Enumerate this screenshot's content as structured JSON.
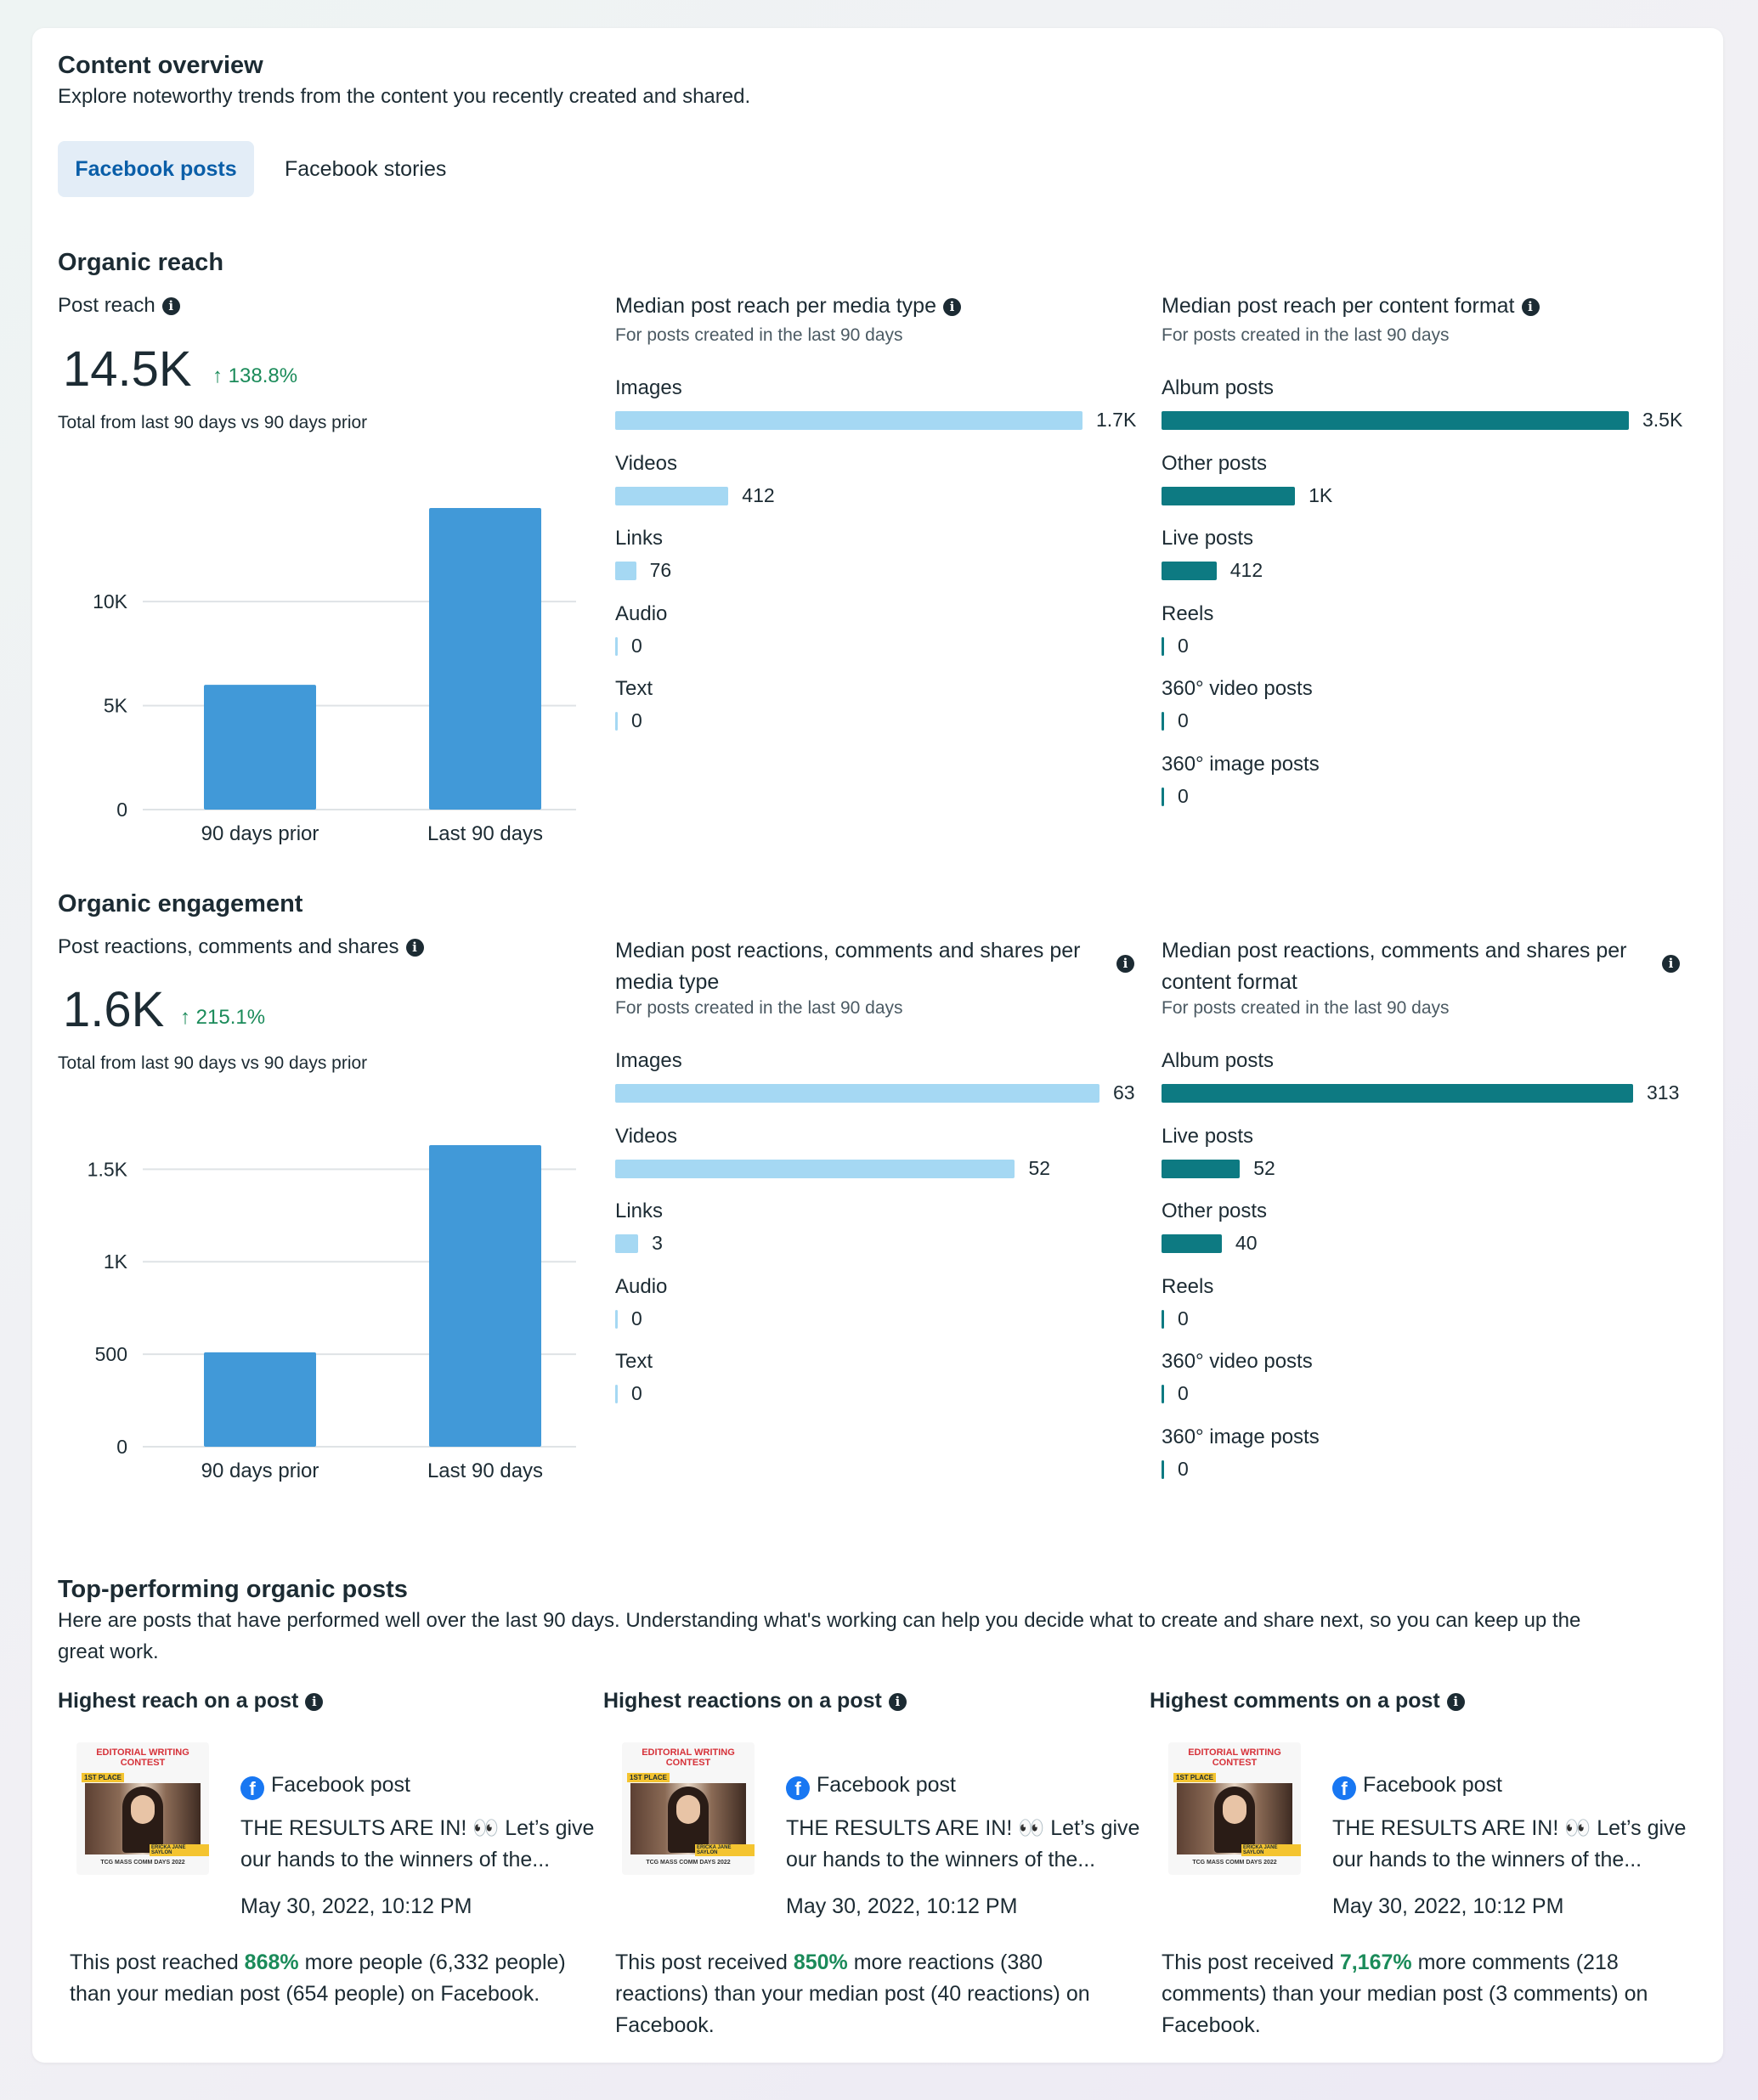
{
  "header": {
    "title": "Content overview",
    "subtitle": "Explore noteworthy trends from the content you recently created and shared."
  },
  "tabs": [
    {
      "label": "Facebook posts",
      "active": true
    },
    {
      "label": "Facebook stories",
      "active": false
    }
  ],
  "reach": {
    "section_title": "Organic reach",
    "metric_label": "Post reach",
    "value": "14.5K",
    "delta": "↑ 138.8%",
    "caption": "Total from last 90 days vs 90 days prior",
    "media_title": "Median post reach per media type",
    "media_sub": "For posts created in the last 90 days",
    "format_title": "Median post reach per content format",
    "format_sub": "For posts created in the last 90 days"
  },
  "engagement": {
    "section_title": "Organic engagement",
    "metric_label": "Post reactions, comments and shares",
    "value": "1.6K",
    "delta": "↑ 215.1%",
    "caption": "Total from last 90 days vs 90 days prior",
    "media_title_1": "Median post reactions, comments and shares per",
    "media_title_2": "media type",
    "media_sub": "For posts created in the last 90 days",
    "format_title_1": "Median post reactions, comments and shares per",
    "format_title_2": "content format",
    "format_sub": "For posts created in the last 90 days"
  },
  "chart_data": [
    {
      "type": "bar",
      "categories": [
        "90 days prior",
        "Last 90 days"
      ],
      "values": [
        6000,
        14500
      ],
      "yticks": [
        "0",
        "5K",
        "10K"
      ],
      "ytick_values": [
        0,
        5000,
        10000
      ],
      "ylim": [
        0,
        14500
      ]
    },
    {
      "type": "bar",
      "orientation": "horizontal",
      "categories": [
        "Images",
        "Videos",
        "Links",
        "Audio",
        "Text"
      ],
      "values": [
        1700,
        412,
        76,
        0,
        0
      ],
      "labels": [
        "1.7K",
        "412",
        "76",
        "0",
        "0"
      ],
      "color": "#a5d8f3"
    },
    {
      "type": "bar",
      "orientation": "horizontal",
      "categories": [
        "Album posts",
        "Other posts",
        "Live posts",
        "Reels",
        "360° video posts",
        "360° image posts"
      ],
      "values": [
        3500,
        1000,
        412,
        0,
        0,
        0
      ],
      "labels": [
        "3.5K",
        "1K",
        "412",
        "0",
        "0",
        "0"
      ],
      "color": "#0d7a82"
    },
    {
      "type": "bar",
      "categories": [
        "90 days prior",
        "Last 90 days"
      ],
      "values": [
        510,
        1630
      ],
      "yticks": [
        "0",
        "500",
        "1K",
        "1.5K"
      ],
      "ytick_values": [
        0,
        500,
        1000,
        1500
      ],
      "ylim": [
        0,
        1630
      ]
    },
    {
      "type": "bar",
      "orientation": "horizontal",
      "categories": [
        "Images",
        "Videos",
        "Links",
        "Audio",
        "Text"
      ],
      "values": [
        63,
        52,
        3,
        0,
        0
      ],
      "labels": [
        "63",
        "52",
        "3",
        "0",
        "0"
      ],
      "color": "#a5d8f3"
    },
    {
      "type": "bar",
      "orientation": "horizontal",
      "categories": [
        "Album posts",
        "Live posts",
        "Other posts",
        "Reels",
        "360° video posts",
        "360° image posts"
      ],
      "values": [
        313,
        52,
        40,
        0,
        0,
        0
      ],
      "labels": [
        "313",
        "52",
        "40",
        "0",
        "0",
        "0"
      ],
      "color": "#0d7a82"
    }
  ],
  "top": {
    "title": "Top-performing organic posts",
    "desc_1": "Here are posts that have performed well over the last 90 days. Understanding what's working can help you decide what to create and share next, so you can keep up the",
    "desc_2": "great work.",
    "cards": [
      {
        "heading": "Highest reach on a post",
        "source": "Facebook post",
        "text_1": "THE RESULTS ARE IN! 👀 Let’s give",
        "text_2": "our hands to the winners of the...",
        "date": "May 30, 2022, 10:12 PM",
        "summary_pre": "This post reached ",
        "summary_pct": "868%",
        "summary_post_1": " more people (6,332 people)",
        "summary_line2": "than your median post (654 people) on Facebook.",
        "summary_line3": ""
      },
      {
        "heading": "Highest reactions on a post",
        "source": "Facebook post",
        "text_1": "THE RESULTS ARE IN! 👀 Let’s give",
        "text_2": "our hands to the winners of the...",
        "date": "May 30, 2022, 10:12 PM",
        "summary_pre": "This post received ",
        "summary_pct": "850%",
        "summary_post_1": " more reactions (380",
        "summary_line2": "reactions) than your median post (40 reactions) on",
        "summary_line3": "Facebook."
      },
      {
        "heading": "Highest comments on a post",
        "source": "Facebook post",
        "text_1": "THE RESULTS ARE IN! 👀 Let’s give",
        "text_2": "our hands to the winners of the...",
        "date": "May 30, 2022, 10:12 PM",
        "summary_pre": "This post received ",
        "summary_pct": "7,167%",
        "summary_post_1": " more comments (218",
        "summary_line2": "comments) than your median post (3 comments) on",
        "summary_line3": "Facebook."
      }
    ],
    "thumb": {
      "line1": "EDITORIAL WRITING",
      "line2": "CONTEST",
      "badge": "1ST PLACE",
      "name": "ERICKA JANE SAYLON",
      "footer": "TCG MASS COMM DAYS 2022"
    }
  }
}
